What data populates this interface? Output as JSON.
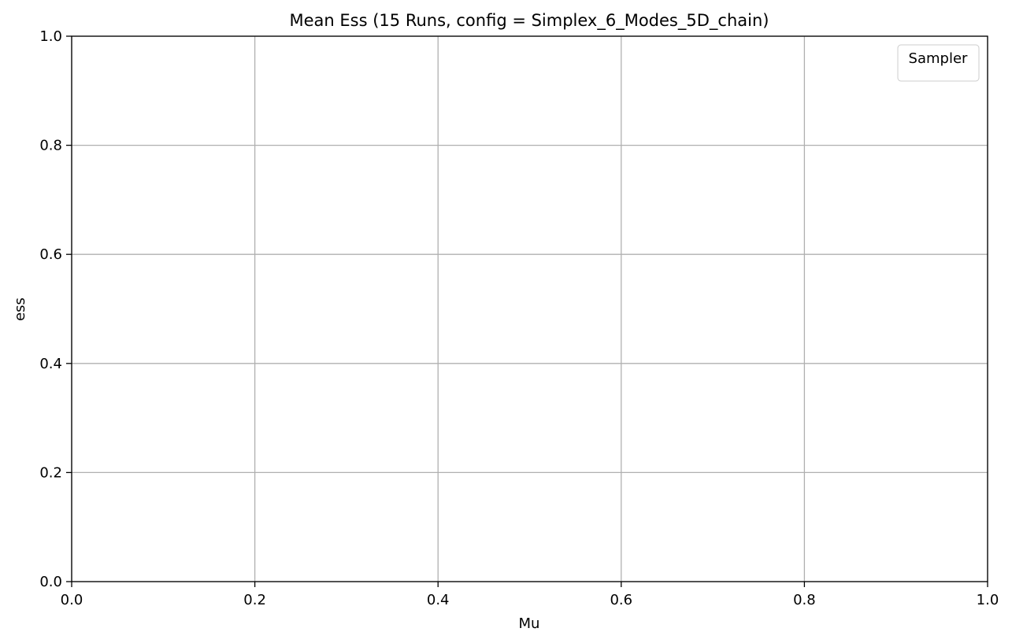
{
  "chart_data": {
    "type": "line",
    "title": "Mean Ess (15 Runs, config = Simplex_6_Modes_5D_chain)",
    "xlabel": "Mu",
    "ylabel": "ess",
    "xlim": [
      0.0,
      1.0
    ],
    "ylim": [
      0.0,
      1.0
    ],
    "xticks": [
      0.0,
      0.2,
      0.4,
      0.6,
      0.8,
      1.0
    ],
    "yticks": [
      0.0,
      0.2,
      0.4,
      0.6,
      0.8,
      1.0
    ],
    "xtick_labels": [
      "0.0",
      "0.2",
      "0.4",
      "0.6",
      "0.8",
      "1.0"
    ],
    "ytick_labels": [
      "0.0",
      "0.2",
      "0.4",
      "0.6",
      "0.8",
      "1.0"
    ],
    "grid": true,
    "legend": {
      "title": "Sampler",
      "placement": "top-right",
      "entries": []
    },
    "series": []
  }
}
